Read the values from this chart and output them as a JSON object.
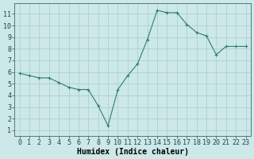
{
  "x": [
    0,
    1,
    2,
    3,
    4,
    5,
    6,
    7,
    8,
    9,
    10,
    11,
    12,
    13,
    14,
    15,
    16,
    17,
    18,
    19,
    20,
    21,
    22,
    23
  ],
  "y": [
    5.9,
    5.7,
    5.5,
    5.5,
    5.1,
    4.7,
    4.5,
    4.5,
    3.1,
    1.4,
    4.5,
    5.7,
    6.7,
    8.8,
    11.3,
    11.1,
    11.1,
    10.1,
    9.4,
    9.1,
    7.5,
    8.2,
    8.2,
    8.2
  ],
  "line_color": "#2e7d6e",
  "marker": "+",
  "bg_color": "#cce8e8",
  "grid_color": "#b0d0d0",
  "xlabel": "Humidex (Indice chaleur)",
  "ylabel_ticks": [
    1,
    2,
    3,
    4,
    5,
    6,
    7,
    8,
    9,
    10,
    11
  ],
  "xlim": [
    -0.5,
    23.5
  ],
  "ylim": [
    0.5,
    11.9
  ],
  "tick_fontsize": 6.0,
  "xlabel_fontsize": 7.0,
  "linewidth": 0.8,
  "markersize": 3
}
